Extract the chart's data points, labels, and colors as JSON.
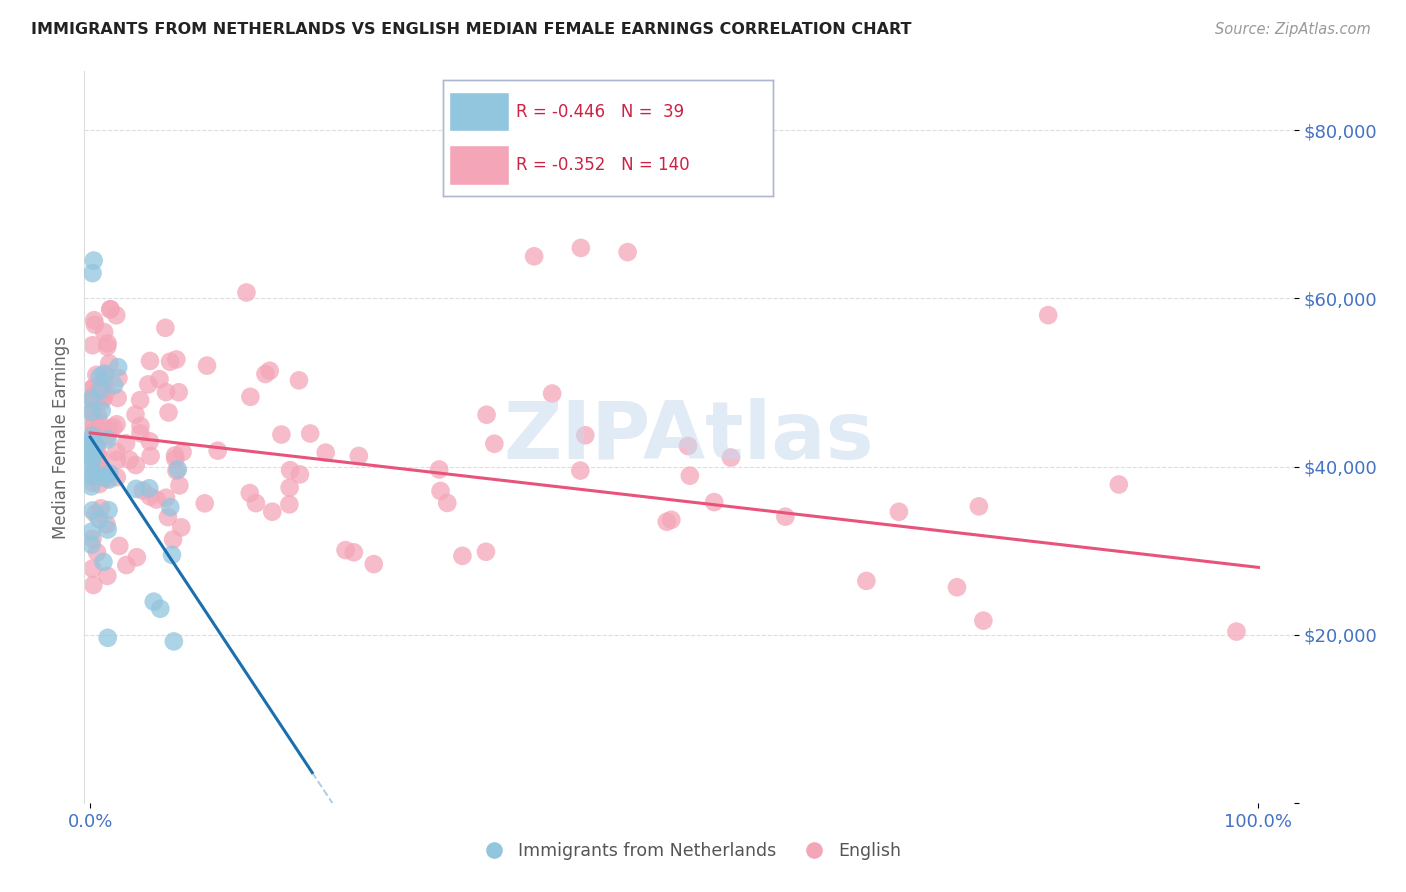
{
  "title": "IMMIGRANTS FROM NETHERLANDS VS ENGLISH MEDIAN FEMALE EARNINGS CORRELATION CHART",
  "source": "Source: ZipAtlas.com",
  "ylabel": "Median Female Earnings",
  "ytick_values": [
    0,
    20000,
    40000,
    60000,
    80000
  ],
  "ylim": [
    0,
    87000
  ],
  "xlim": [
    -0.005,
    1.03
  ],
  "legend1_label": "Immigrants from Netherlands",
  "legend2_label": "English",
  "r1": "-0.446",
  "n1": "39",
  "r2": "-0.352",
  "n2": "140",
  "color_blue": "#92c5de",
  "color_pink": "#f4a6b8",
  "color_blue_line": "#1a6faf",
  "color_pink_line": "#e8537a",
  "color_axis_labels": "#4472c4",
  "color_title": "#222222",
  "color_source": "#999999",
  "color_grid": "#dddddd",
  "color_watermark": "#c5d9ef",
  "blue_intercept": 43500,
  "blue_slope": -210000,
  "pink_intercept": 44000,
  "pink_slope": -16000,
  "blue_line_x_end": 0.19,
  "pink_line_x_start": 0.0,
  "pink_line_x_end": 1.0
}
